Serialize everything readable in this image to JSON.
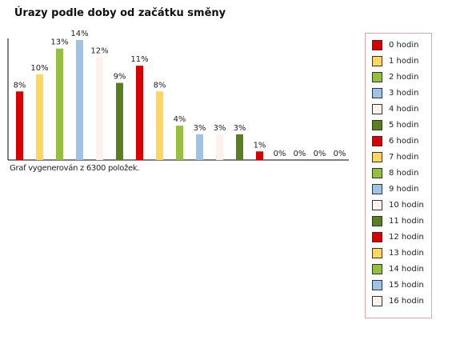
{
  "chart_data": {
    "type": "bar",
    "title": "Úrazy podle doby od začátku směny",
    "categories": [
      "0 hodin",
      "1 hodin",
      "2 hodin",
      "3 hodin",
      "4 hodin",
      "5 hodin",
      "6 hodin",
      "7 hodin",
      "8 hodin",
      "9 hodin",
      "10 hodin",
      "11 hodin",
      "12 hodin",
      "13 hodin",
      "14 hodin",
      "15 hodin",
      "16 hodin"
    ],
    "values": [
      8,
      10,
      13,
      14,
      12,
      9,
      11,
      8,
      4,
      3,
      3,
      3,
      1,
      0,
      0,
      0,
      0
    ],
    "value_labels": [
      "8%",
      "10%",
      "13%",
      "14%",
      "12%",
      "9%",
      "11%",
      "8%",
      "4%",
      "3%",
      "3%",
      "3%",
      "1%",
      "0%",
      "0%",
      "0%",
      "0%"
    ],
    "colors": [
      "#d60000",
      "#ffd75e",
      "#96be40",
      "#9dc3e6",
      "#fff0f0",
      "#5a7f21",
      "#d60000",
      "#ffd75e",
      "#96be40",
      "#9dc3e6",
      "#fff0f0",
      "#5a7f21",
      "#d60000",
      "#ffd75e",
      "#96be40",
      "#9dc3e6",
      "#fff0f0"
    ],
    "ylim": [
      0,
      14
    ],
    "grid": false,
    "legend_position": "right"
  },
  "footnote": "Graf vygenerován z 6300 položek."
}
